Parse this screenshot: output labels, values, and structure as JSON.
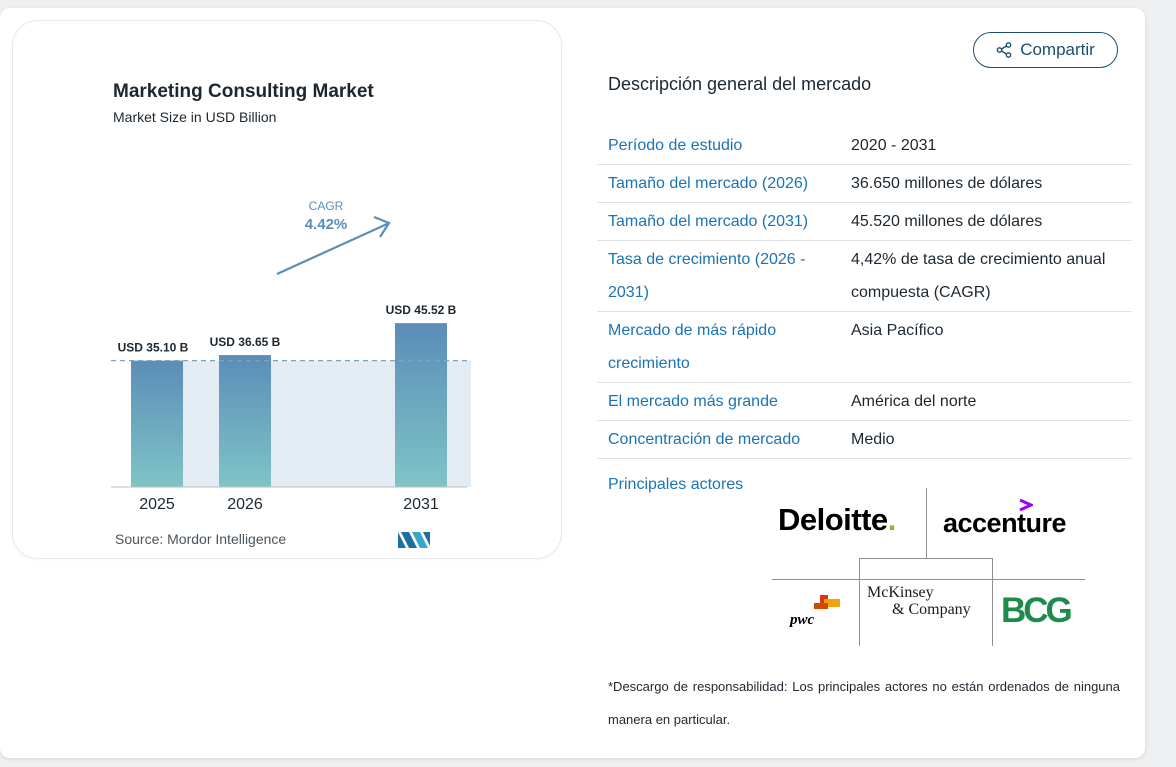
{
  "share": {
    "label": "Compartir",
    "icon": "share-icon"
  },
  "chart_data": {
    "type": "bar",
    "title": "Marketing Consulting Market",
    "subtitle": "Market Size in USD Billion",
    "categories": [
      "2025",
      "2026",
      "2031"
    ],
    "values": [
      35.1,
      36.65,
      45.52
    ],
    "data_labels": [
      "USD 35.10 B",
      "USD 36.65 B",
      "USD 45.52 B"
    ],
    "ylim": [
      0,
      50
    ],
    "cagr_label": "CAGR",
    "cagr_value": "4.42%",
    "source": "Source: Mordor Intelligence",
    "colors": {
      "bar_top": "#5b8db8",
      "bar_bottom": "#7fc4c6",
      "band": "#e3ebf3",
      "dash": "#7fa3c2",
      "arrow": "#5b8db8"
    }
  },
  "overview": {
    "title": "Descripción general del mercado",
    "rows": [
      {
        "key": "Período de estudio",
        "value": "2020 - 2031"
      },
      {
        "key": "Tamaño del mercado (2026)",
        "value": "36.650 millones de dólares"
      },
      {
        "key": "Tamaño del mercado (2031)",
        "value": "45.520 millones de dólares"
      },
      {
        "key": "Tasa de crecimiento (2026 - 2031)",
        "value": "4,42% de tasa de crecimiento anual compuesta (CAGR)"
      },
      {
        "key": "Mercado de más rápido crecimiento",
        "value": "Asia Pacífico"
      },
      {
        "key": "El mercado más grande",
        "value": "América del norte"
      },
      {
        "key": "Concentración de mercado",
        "value": "Medio"
      }
    ]
  },
  "players": {
    "label": "Principales actores",
    "deloitte": "Deloitte",
    "accenture": "accenture",
    "mckinsey_line1": "McKinsey",
    "mckinsey_line2": "& Company",
    "pwc": "pwc",
    "bcg": "BCG"
  },
  "disclaimer": "*Descargo de responsabilidad: Los principales actores no están ordenados de ninguna manera en particular."
}
